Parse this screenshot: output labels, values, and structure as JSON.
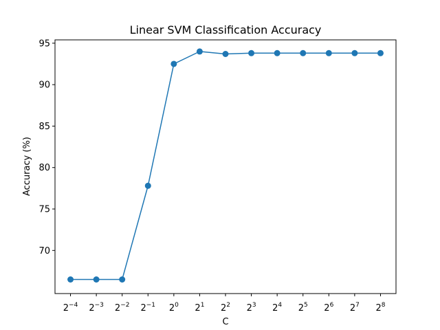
{
  "chart_data": {
    "type": "line",
    "title": "Linear SVM Classification Accuracy",
    "xlabel": "C",
    "ylabel": "Accuracy (%)",
    "x_scale": "log2",
    "x_exponents": [
      -4,
      -3,
      -2,
      -1,
      0,
      1,
      2,
      3,
      4,
      5,
      6,
      7,
      8
    ],
    "x_tick_labels": [
      {
        "base": "2",
        "exp": "−4"
      },
      {
        "base": "2",
        "exp": "−3"
      },
      {
        "base": "2",
        "exp": "−2"
      },
      {
        "base": "2",
        "exp": "−1"
      },
      {
        "base": "2",
        "exp": "0"
      },
      {
        "base": "2",
        "exp": "1"
      },
      {
        "base": "2",
        "exp": "2"
      },
      {
        "base": "2",
        "exp": "3"
      },
      {
        "base": "2",
        "exp": "4"
      },
      {
        "base": "2",
        "exp": "5"
      },
      {
        "base": "2",
        "exp": "6"
      },
      {
        "base": "2",
        "exp": "7"
      },
      {
        "base": "2",
        "exp": "8"
      }
    ],
    "y_ticks": [
      70,
      75,
      80,
      85,
      90,
      95
    ],
    "ylim": [
      64.8,
      95.4
    ],
    "xlim_exponents": [
      -4.6,
      8.6
    ],
    "grid": false,
    "series": [
      {
        "color": "#1f77b4",
        "marker": "circle",
        "values": [
          66.5,
          66.5,
          66.5,
          77.8,
          92.5,
          94.0,
          93.7,
          93.8,
          93.8,
          93.8,
          93.8,
          93.8,
          93.8
        ]
      }
    ]
  }
}
